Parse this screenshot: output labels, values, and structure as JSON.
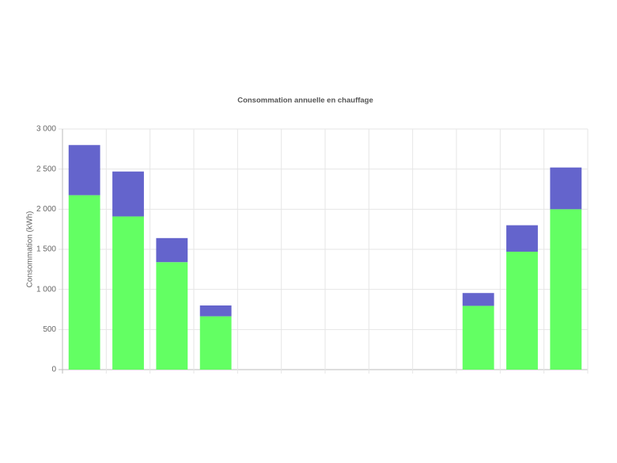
{
  "chart_data": {
    "type": "stacked_bar",
    "title": "Consommation annuelle en chauffage",
    "y_label": "Consommation (kWh)",
    "categories": [
      null,
      null,
      null,
      null,
      null,
      null,
      null,
      null,
      null,
      null,
      null,
      null
    ],
    "series": [
      {
        "color": "#63ff63",
        "values": [
          2175,
          1910,
          1340,
          665,
          null,
          null,
          null,
          null,
          null,
          795,
          1470,
          2000
        ]
      },
      {
        "color": "#6464cc",
        "values": [
          625,
          560,
          300,
          135,
          null,
          null,
          null,
          null,
          null,
          160,
          330,
          520
        ]
      }
    ],
    "ylim": [
      0,
      3000
    ],
    "yticks": [
      0,
      500,
      {
        "value": 1000,
        "label": "1 000"
      },
      {
        "value": 1500,
        "label": "1 500"
      },
      {
        "value": 2000,
        "label": "2 000"
      },
      {
        "value": 2500,
        "label": "2 500"
      },
      {
        "value": 3000,
        "label": "3 000"
      }
    ],
    "grid": true
  }
}
